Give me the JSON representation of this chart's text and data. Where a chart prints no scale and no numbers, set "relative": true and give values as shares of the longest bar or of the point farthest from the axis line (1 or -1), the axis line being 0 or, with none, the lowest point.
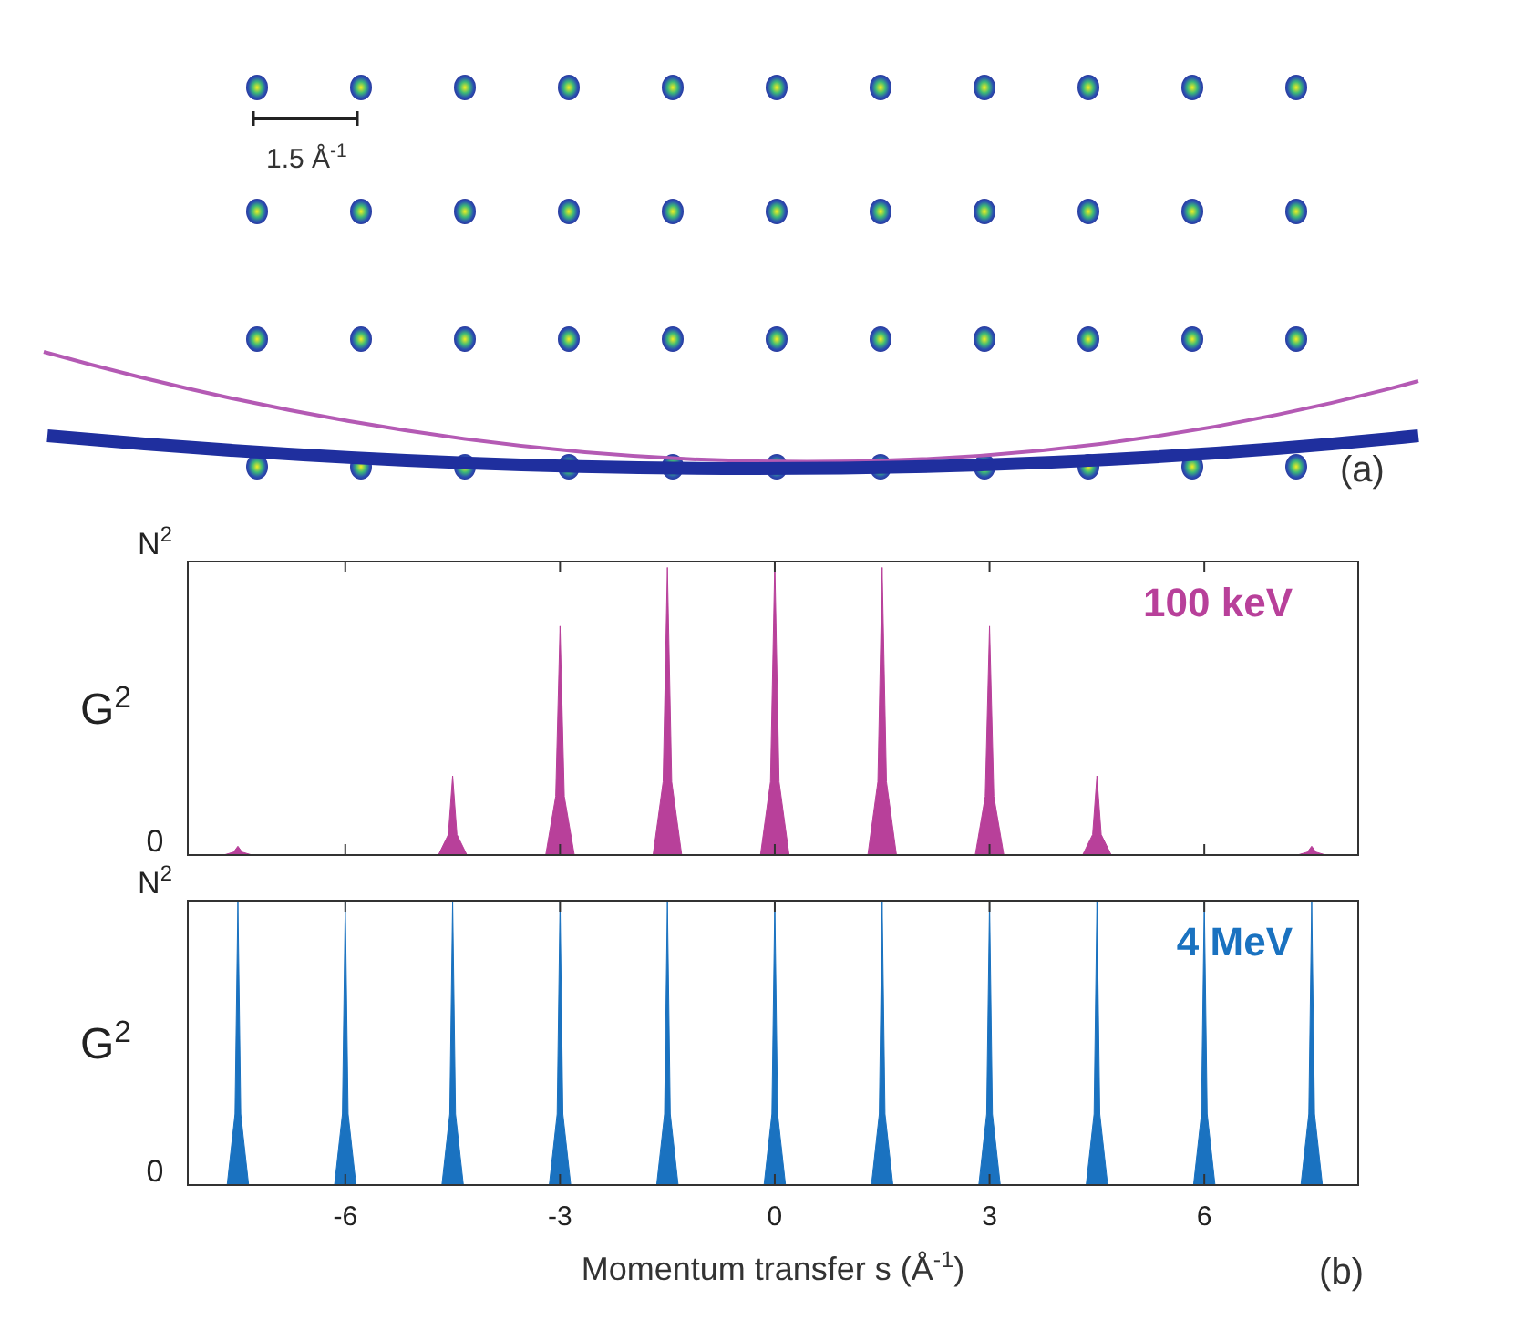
{
  "chart_data": [
    {
      "type": "other",
      "annotations": [
        "1.5 Å$^{-1}$",
        "(a)"
      ]
    },
    {
      "type": "area",
      "relative": true,
      "ylabel": "G$^{2}$",
      "annotations": [
        "N$^{2}$",
        "0"
      ],
      "xlim": [
        -8.2,
        8.15
      ],
      "xticks": [
        {
          "value": -6,
          "label": null
        },
        {
          "value": -3,
          "label": null
        },
        {
          "value": 0,
          "label": null
        },
        {
          "value": 3,
          "label": null
        },
        {
          "value": 6,
          "label": null
        }
      ],
      "tick_labels": false,
      "legend": "top right",
      "series": [
        {
          "name": "100 keV",
          "color": "#b8409a",
          "x": [
            -7.7,
            -7.56,
            -7.5,
            -7.44,
            -7.3,
            -4.7,
            -4.56,
            -4.5,
            -4.44,
            -4.3,
            -3.2,
            -3.06,
            -3,
            -2.94,
            -2.8,
            -1.7,
            -1.56,
            -1.5,
            -1.44,
            -1.3,
            -0.2,
            -0.06,
            0,
            0.06,
            0.2,
            1.3,
            1.44,
            1.5,
            1.56,
            1.7,
            2.8,
            2.94,
            3,
            3.06,
            3.2,
            4.3,
            4.44,
            4.5,
            4.56,
            4.7,
            7.3,
            7.44,
            7.5,
            7.56,
            7.7
          ],
          "values": [
            0,
            0.01,
            0.03,
            0.01,
            0,
            0,
            0.07,
            0.27,
            0.07,
            0,
            0,
            0.2,
            0.78,
            0.2,
            0,
            0,
            0.25,
            0.98,
            0.25,
            0,
            0,
            0.25,
            1,
            0.25,
            0,
            0,
            0.25,
            0.98,
            0.25,
            0,
            0,
            0.2,
            0.78,
            0.2,
            0,
            0,
            0.07,
            0.27,
            0.07,
            0,
            0,
            0.01,
            0.03,
            0.01,
            0
          ]
        }
      ]
    },
    {
      "type": "area",
      "relative": true,
      "ylabel": "G$^{2}$",
      "xlabel": "Momentum transfer s (Å$^{-1}$)",
      "annotations": [
        "N$^{2}$",
        "0",
        "(b)"
      ],
      "xlim": [
        -8.2,
        8.15
      ],
      "xticks": [
        -6,
        -3,
        0,
        3,
        6
      ],
      "tick_labels": "x",
      "legend": "top right",
      "series": [
        {
          "name": "4 MeV",
          "color": "#1a72c0",
          "x": [
            -7.65,
            -7.54,
            -7.5,
            -7.46,
            -7.35,
            -6.15,
            -6.04,
            -6,
            -5.96,
            -5.85,
            -4.65,
            -4.54,
            -4.5,
            -4.46,
            -4.35,
            -3.15,
            -3.04,
            -3,
            -2.96,
            -2.85,
            -1.65,
            -1.54,
            -1.5,
            -1.46,
            -1.35,
            -0.15,
            -0.04,
            0,
            0.04,
            0.15,
            1.35,
            1.46,
            1.5,
            1.54,
            1.65,
            2.85,
            2.96,
            3,
            3.04,
            3.15,
            4.35,
            4.46,
            4.5,
            4.54,
            4.65,
            5.85,
            5.96,
            6,
            6.04,
            6.15,
            7.35,
            7.46,
            7.5,
            7.54,
            7.65
          ],
          "values": [
            0,
            0.25,
            1,
            0.25,
            0,
            0,
            0.25,
            1,
            0.25,
            0,
            0,
            0.25,
            1,
            0.25,
            0,
            0,
            0.25,
            1,
            0.25,
            0,
            0,
            0.25,
            1,
            0.25,
            0,
            0,
            0.25,
            1,
            0.25,
            0,
            0,
            0.25,
            1,
            0.25,
            0,
            0,
            0.25,
            1,
            0.25,
            0,
            0,
            0.25,
            1,
            0.25,
            0,
            0,
            0.25,
            1,
            0.25,
            0,
            0,
            0.25,
            1,
            0.25,
            0
          ]
        }
      ]
    }
  ]
}
